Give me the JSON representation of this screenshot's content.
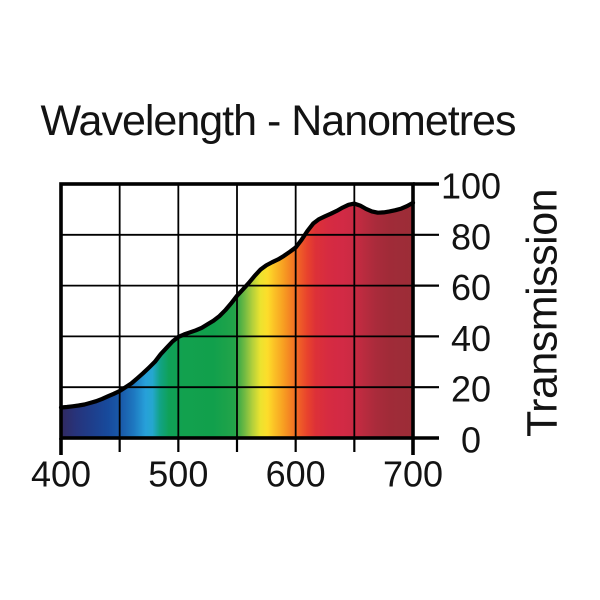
{
  "chart_data": {
    "type": "area",
    "title": "Wavelength - Nanometres",
    "ylabel": "Transmission",
    "xlabel": "Wavelength - Nanometres",
    "xlim": [
      400,
      700
    ],
    "ylim": [
      0,
      100
    ],
    "grid": true,
    "legend": "none",
    "x_gridline_values": [
      400,
      450,
      500,
      550,
      600,
      650,
      700
    ],
    "x_tick_values": [
      400,
      500,
      600,
      700
    ],
    "x_tick_labels": [
      "400",
      "500",
      "600",
      "700"
    ],
    "y_tick_values": [
      0,
      20,
      40,
      60,
      80,
      100
    ],
    "y_tick_labels": [
      "0",
      "20",
      "40",
      "60",
      "80",
      "100"
    ],
    "axis_color": "#000000",
    "curve_color": "#000000",
    "series": [
      {
        "name": "Transmission %",
        "x": [
          400,
          405,
          410,
          415,
          420,
          425,
          430,
          435,
          440,
          445,
          450,
          455,
          460,
          465,
          470,
          475,
          480,
          485,
          490,
          495,
          500,
          505,
          510,
          515,
          520,
          525,
          530,
          535,
          540,
          545,
          550,
          555,
          560,
          565,
          570,
          575,
          580,
          585,
          590,
          595,
          600,
          605,
          610,
          615,
          620,
          625,
          630,
          635,
          640,
          645,
          650,
          655,
          660,
          665,
          670,
          675,
          680,
          685,
          690,
          695,
          700
        ],
        "y": [
          12.0,
          12.2,
          12.5,
          12.8,
          13.2,
          13.8,
          14.5,
          15.4,
          16.4,
          17.4,
          18.5,
          20.0,
          21.5,
          23.5,
          25.5,
          27.7,
          30.0,
          33.0,
          35.5,
          38.0,
          39.8,
          40.8,
          41.6,
          42.4,
          43.4,
          44.8,
          46.2,
          48.0,
          50.3,
          53.0,
          56.0,
          58.5,
          61.0,
          63.8,
          66.3,
          68.0,
          69.2,
          70.3,
          71.7,
          73.3,
          75.0,
          78.0,
          81.5,
          84.5,
          86.2,
          87.3,
          88.3,
          89.4,
          90.7,
          91.8,
          92.3,
          91.5,
          90.2,
          89.2,
          88.7,
          88.8,
          89.2,
          89.7,
          90.3,
          91.3,
          92.6
        ]
      }
    ],
    "fill": {
      "type": "spectrum-gradient",
      "stops": [
        {
          "at": 400,
          "color": "#32295f"
        },
        {
          "at": 412,
          "color": "#27337a"
        },
        {
          "at": 425,
          "color": "#1f3d8a"
        },
        {
          "at": 440,
          "color": "#174a9c"
        },
        {
          "at": 452,
          "color": "#1a5cab"
        },
        {
          "at": 462,
          "color": "#1e78c0"
        },
        {
          "at": 472,
          "color": "#27a0d9"
        },
        {
          "at": 478,
          "color": "#25a7cf"
        },
        {
          "at": 484,
          "color": "#12a388"
        },
        {
          "at": 492,
          "color": "#0fa158"
        },
        {
          "at": 505,
          "color": "#12a14e"
        },
        {
          "at": 530,
          "color": "#11a04c"
        },
        {
          "at": 548,
          "color": "#23a449"
        },
        {
          "at": 556,
          "color": "#6cb843"
        },
        {
          "at": 563,
          "color": "#b1cf3c"
        },
        {
          "at": 570,
          "color": "#ece32f"
        },
        {
          "at": 576,
          "color": "#fddd2a"
        },
        {
          "at": 582,
          "color": "#fbc026"
        },
        {
          "at": 590,
          "color": "#f79d22"
        },
        {
          "at": 597,
          "color": "#f37b23"
        },
        {
          "at": 603,
          "color": "#ef5f27"
        },
        {
          "at": 610,
          "color": "#e8422d"
        },
        {
          "at": 617,
          "color": "#dd3138"
        },
        {
          "at": 628,
          "color": "#d62b41"
        },
        {
          "at": 640,
          "color": "#d22a45"
        },
        {
          "at": 650,
          "color": "#ca2a43"
        },
        {
          "at": 658,
          "color": "#ba2b3f"
        },
        {
          "at": 668,
          "color": "#aa2b3b"
        },
        {
          "at": 680,
          "color": "#a02b38"
        },
        {
          "at": 700,
          "color": "#9c2d37"
        }
      ]
    }
  }
}
